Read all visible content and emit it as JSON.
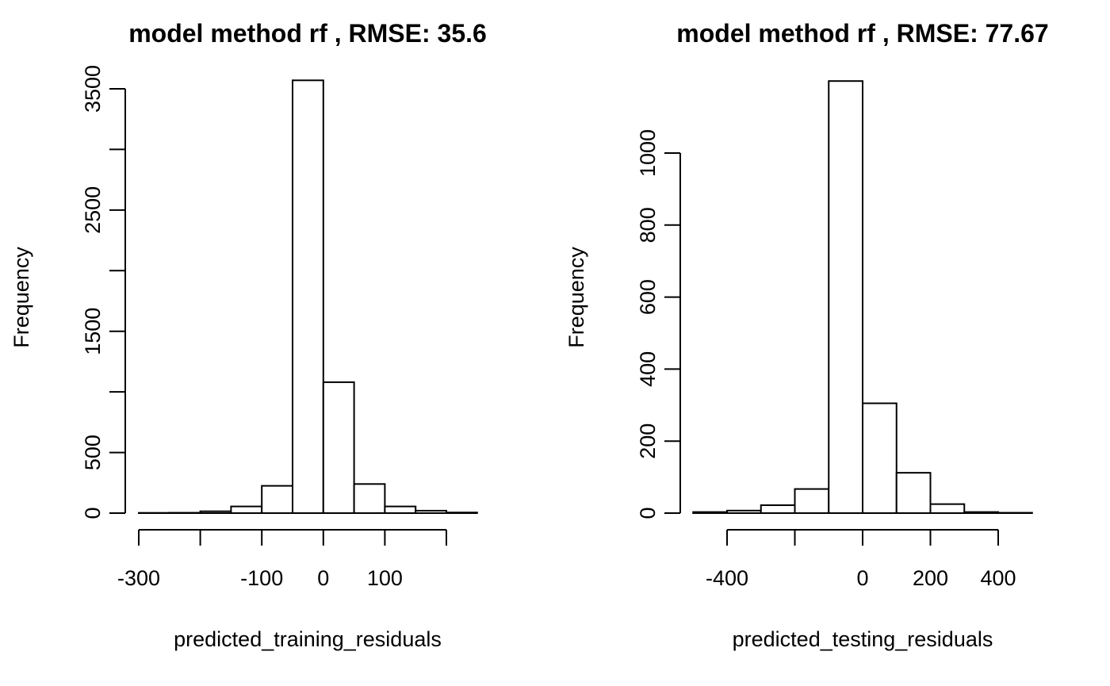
{
  "chart_data": [
    {
      "type": "bar",
      "title": "model method rf , RMSE: 35.6",
      "xlabel": "predicted_training_residuals",
      "ylabel": "Frequency",
      "x_ticks": [
        -300,
        -100,
        0,
        100
      ],
      "x_tick_marks": [
        -300,
        -200,
        -100,
        0,
        100,
        200
      ],
      "y_ticks": [
        0,
        500,
        1500,
        2500,
        3500
      ],
      "y_tick_marks": [
        0,
        500,
        1000,
        1500,
        2000,
        2500,
        3000,
        3500
      ],
      "bin_edges": [
        -300,
        -250,
        -200,
        -150,
        -100,
        -50,
        0,
        50,
        100,
        150,
        200,
        250
      ],
      "values": [
        2,
        3,
        15,
        55,
        225,
        3570,
        1080,
        240,
        55,
        20,
        5
      ],
      "xlim": [
        -300,
        250
      ],
      "ylim": [
        0,
        3500
      ]
    },
    {
      "type": "bar",
      "title": "model method rf , RMSE: 77.67",
      "xlabel": "predicted_testing_residuals",
      "ylabel": "Frequency",
      "x_ticks": [
        -400,
        0,
        200,
        400
      ],
      "x_tick_marks": [
        -400,
        -200,
        0,
        200,
        400
      ],
      "y_ticks": [
        0,
        200,
        400,
        600,
        800,
        1000
      ],
      "y_tick_marks": [
        0,
        200,
        400,
        600,
        800,
        1000
      ],
      "bin_edges": [
        -500,
        -400,
        -300,
        -200,
        -100,
        0,
        100,
        200,
        300,
        400,
        500
      ],
      "values": [
        3,
        7,
        22,
        67,
        1200,
        305,
        112,
        25,
        3,
        1
      ],
      "xlim": [
        -400,
        400
      ],
      "ylim": [
        0,
        1000
      ]
    }
  ]
}
